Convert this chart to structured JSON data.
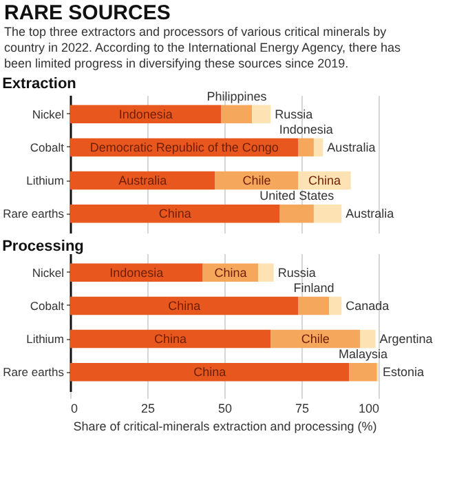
{
  "chart_data": [
    {
      "type": "other",
      "title": "RARE SOURCES",
      "subtitle": "The top three extractors and processors of various critical minerals by country in 2022. According to the International Energy Agency, there has been limited progress in diversifying these sources since 2019."
    },
    {
      "type": "bar",
      "title": "Extraction",
      "orientation": "horizontal",
      "stacked": true,
      "categories": [
        "Nickel",
        "Cobalt",
        "Lithium",
        "Rare earths"
      ],
      "xlim": [
        0,
        100
      ],
      "xticks": [
        0,
        25,
        50,
        75,
        100
      ],
      "grid": "x",
      "tick_labels": "y",
      "series": [
        {
          "color": "#e8581e",
          "values": [
            49,
            74,
            47,
            68
          ],
          "value_labels": [
            "Indonesia",
            "Democratic Republic of the Congo",
            "Australia",
            "China"
          ]
        },
        {
          "color": "#f5a85c",
          "values": [
            10,
            5,
            27,
            11
          ],
          "value_labels": [
            "Philippines",
            "Indonesia",
            "Chile",
            "United States"
          ]
        },
        {
          "color": "#fde2b4",
          "values": [
            6,
            3,
            17,
            9
          ],
          "value_labels": [
            "Russia",
            "Australia",
            "China",
            "Australia"
          ]
        }
      ]
    },
    {
      "type": "bar",
      "title": "Processing",
      "orientation": "horizontal",
      "stacked": true,
      "categories": [
        "Nickel",
        "Cobalt",
        "Lithium",
        "Rare earths"
      ],
      "xlim": [
        0,
        100
      ],
      "xticks": [
        0,
        25,
        50,
        75,
        100
      ],
      "grid": "x",
      "xlabel": "Share of critical-minerals extraction and processing (%)",
      "series": [
        {
          "color": "#e8581e",
          "values": [
            43,
            74,
            65,
            90.5
          ],
          "value_labels": [
            "Indonesia",
            "China",
            "China",
            "China"
          ]
        },
        {
          "color": "#f5a85c",
          "values": [
            18,
            10,
            29,
            9
          ],
          "value_labels": [
            "China",
            "Finland",
            "Chile",
            "Malaysia"
          ]
        },
        {
          "color": "#fde2b4",
          "values": [
            5,
            4,
            5,
            0.5
          ],
          "value_labels": [
            "Russia",
            "Canada",
            "Argentina",
            "Estonia"
          ]
        }
      ]
    }
  ]
}
